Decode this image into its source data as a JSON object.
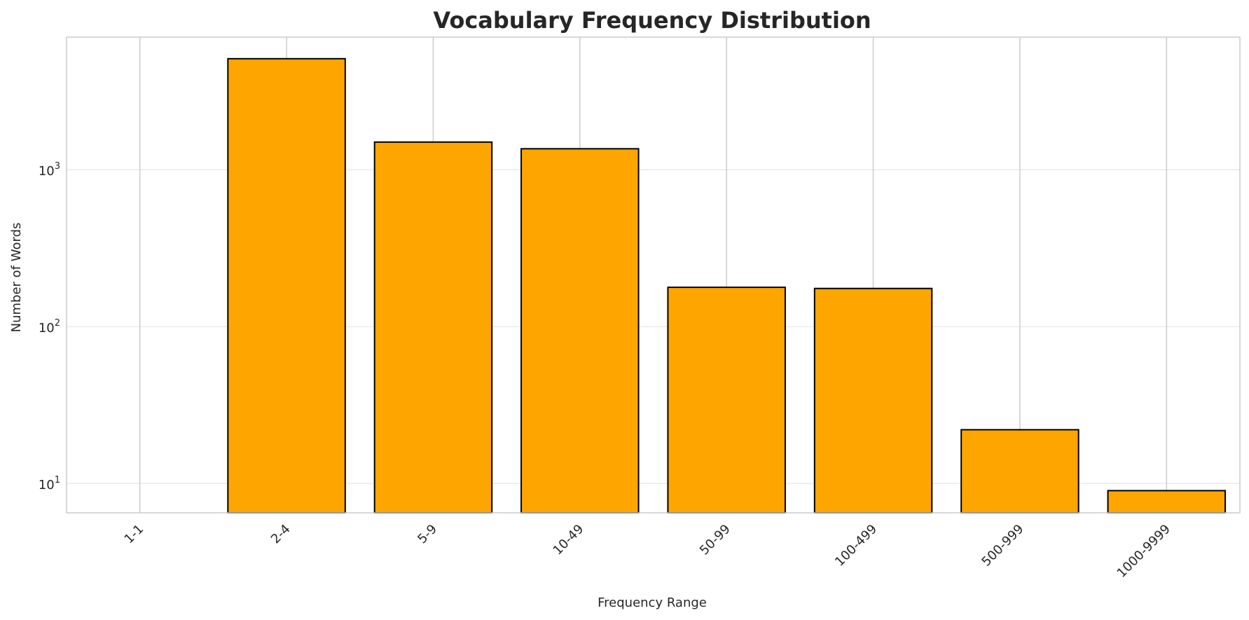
{
  "chart_data": {
    "type": "bar",
    "title": "Vocabulary Frequency Distribution",
    "xlabel": "Frequency Range",
    "ylabel": "Number of Words",
    "categories": [
      "1-1",
      "2-4",
      "5-9",
      "10-49",
      "50-99",
      "100-499",
      "500-999",
      "1000-9999"
    ],
    "values": [
      null,
      5100,
      1500,
      1360,
      178,
      175,
      22,
      9
    ],
    "y_scale": "log",
    "ylim": [
      6.5,
      7000
    ],
    "y_ticks": [
      {
        "value": 10,
        "base": "10",
        "exp": "1"
      },
      {
        "value": 100,
        "base": "10",
        "exp": "2"
      },
      {
        "value": 1000,
        "base": "10",
        "exp": "3"
      }
    ],
    "grid": true,
    "legend": "none",
    "colors": {
      "bar": "#ffa500",
      "bar_edge": "#000000",
      "grid": "#e6e6e6",
      "vgrid": "#cccccc",
      "frame": "#cccccc",
      "text": "#262626"
    }
  }
}
